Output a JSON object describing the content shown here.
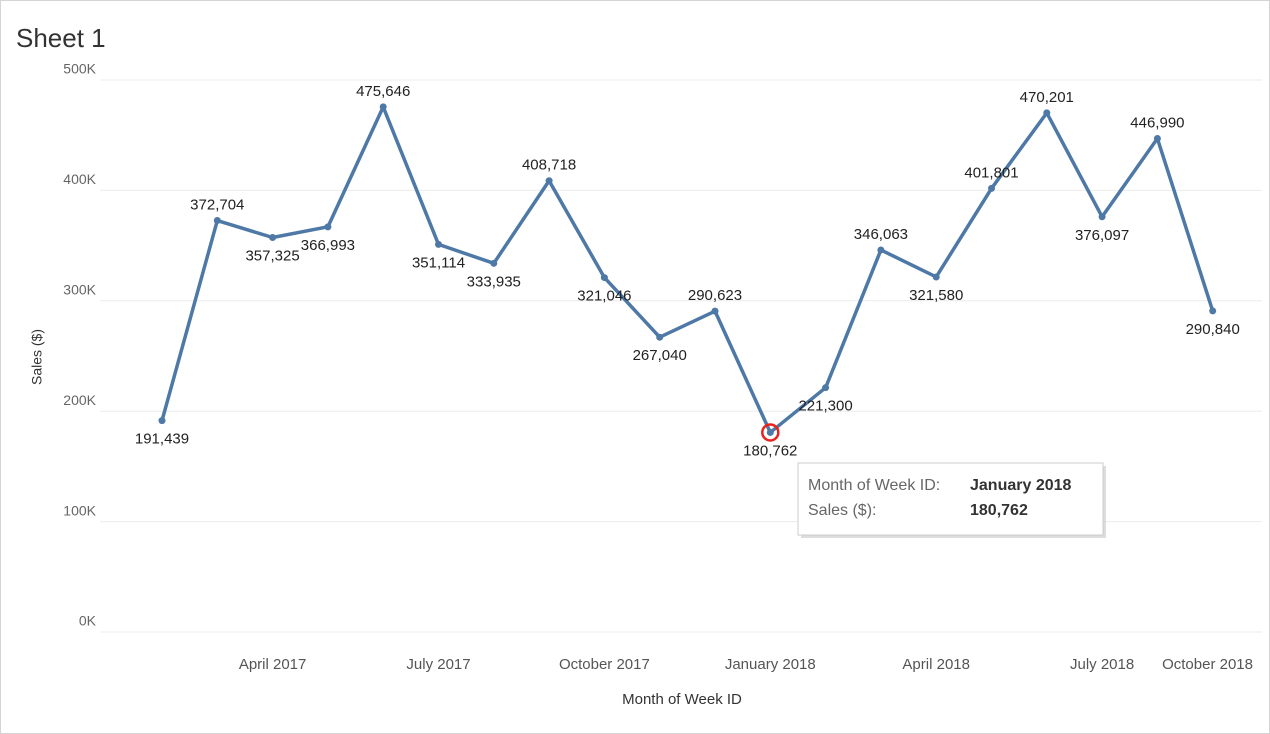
{
  "chart_data": {
    "type": "line",
    "title": "Sheet 1",
    "x_label": "Month of Week ID",
    "y_label": "Sales ($)",
    "categories": [
      null,
      null,
      "April 2017",
      null,
      null,
      "July 2017",
      null,
      null,
      "October 2017",
      null,
      null,
      "January 2018",
      null,
      null,
      "April 2018",
      null,
      null,
      "July 2018",
      null,
      null,
      "October 2018"
    ],
    "series": [
      {
        "name": "Sales ($)",
        "color": "#4e79a7",
        "values": [
          191439,
          372704,
          357325,
          366993,
          475646,
          351114,
          333935,
          408718,
          321046,
          267040,
          290623,
          180762,
          221300,
          346063,
          321580,
          401801,
          470201,
          376097,
          446990,
          290840,
          null
        ],
        "value_labels": [
          "191,439",
          "372,704",
          "357,325",
          "366,993",
          "475,646",
          "351,114",
          "333,935",
          "408,718",
          "321,046",
          "267,040",
          "290,623",
          "180,762",
          "221,300",
          "346,063",
          "321,580",
          "401,801",
          "470,201",
          "376,097",
          "446,990",
          "290,840",
          null
        ]
      }
    ],
    "ylim": [
      0,
      500000
    ],
    "yticks": [
      {
        "value": 0,
        "label": "0K"
      },
      {
        "value": 100000,
        "label": "100K"
      },
      {
        "value": 200000,
        "label": "200K"
      },
      {
        "value": 300000,
        "label": "300K"
      },
      {
        "value": 400000,
        "label": "400K"
      },
      {
        "value": 500000,
        "label": "500K"
      }
    ],
    "grid": true,
    "highlight": 11,
    "tooltip": {
      "rows": [
        {
          "label": "Month of Week ID:",
          "value": "January 2018"
        },
        {
          "label": "Sales ($):",
          "value": "180,762"
        }
      ]
    }
  }
}
